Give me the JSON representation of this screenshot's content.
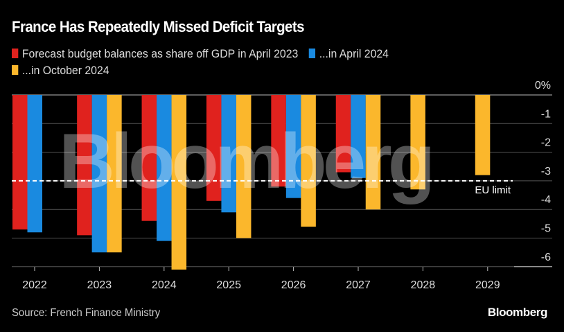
{
  "header": {
    "title": "France Has Repeatedly Missed Deficit Targets"
  },
  "legend": [
    {
      "label": "Forecast budget balances as share off GDP in April 2023",
      "color": "#e0221e"
    },
    {
      "label": "...in April 2024",
      "color": "#1a8ae0"
    },
    {
      "label": "...in October 2024",
      "color": "#fbb72c"
    }
  ],
  "footer": {
    "source": "Source: French Finance Ministry",
    "brand": "Bloomberg"
  },
  "watermark": "Bloomberg",
  "chart_data": {
    "type": "bar",
    "title": "France Has Repeatedly Missed Deficit Targets",
    "xlabel": "",
    "ylabel": "",
    "categories": [
      "2022",
      "2023",
      "2024",
      "2025",
      "2026",
      "2027",
      "2028",
      "2029"
    ],
    "series": [
      {
        "name": "Forecast budget balances as share off GDP in April 2023",
        "color": "#e0221e",
        "values": [
          -4.7,
          -4.9,
          -4.4,
          -3.7,
          -3.2,
          -2.7,
          null,
          null
        ]
      },
      {
        "name": "...in April 2024",
        "color": "#1a8ae0",
        "values": [
          -4.8,
          -5.5,
          -5.1,
          -4.1,
          -3.6,
          -2.9,
          null,
          null
        ]
      },
      {
        "name": "...in October 2024",
        "color": "#fbb72c",
        "values": [
          null,
          -5.5,
          -6.1,
          -5.0,
          -4.6,
          -4.0,
          -3.3,
          -2.8
        ]
      }
    ],
    "ylim": [
      -6,
      0
    ],
    "yticks": [
      {
        "value": 0,
        "label": "0%"
      },
      {
        "value": -1,
        "label": "-1"
      },
      {
        "value": -2,
        "label": "-2"
      },
      {
        "value": -3,
        "label": "-3"
      },
      {
        "value": -4,
        "label": "-4"
      },
      {
        "value": -5,
        "label": "-5"
      },
      {
        "value": -6,
        "label": "-6"
      }
    ],
    "grid": true,
    "legend_position": "top-left",
    "annotations": [
      {
        "type": "reference-line",
        "value": -3,
        "label": "EU limit",
        "style": "dashed",
        "color": "#ffffff"
      }
    ]
  }
}
